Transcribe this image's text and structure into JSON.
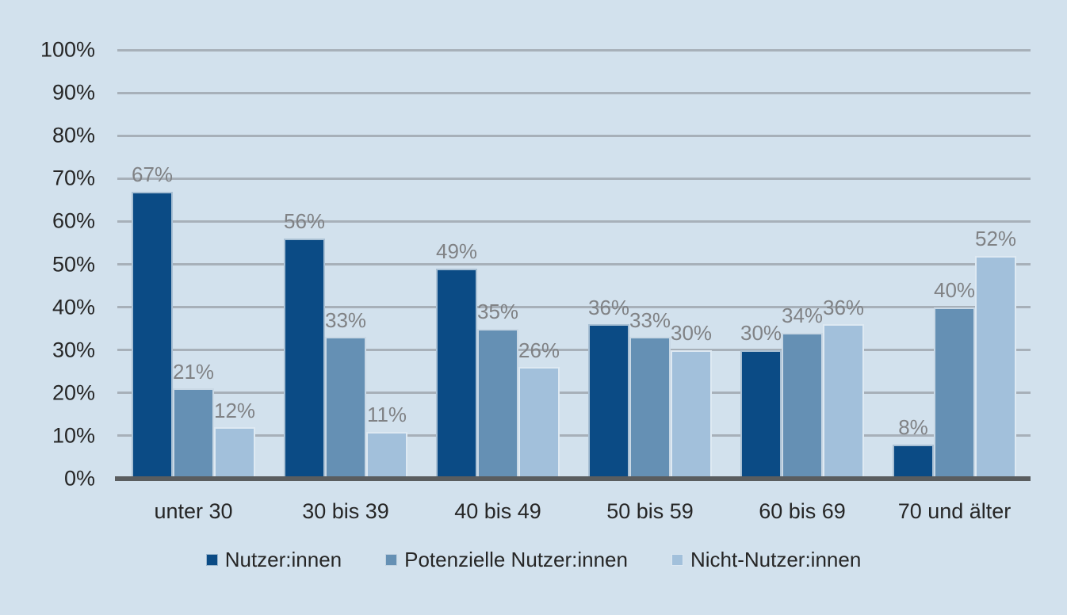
{
  "chart_data": {
    "type": "bar",
    "title": "",
    "xlabel": "",
    "ylabel": "",
    "categories": [
      "unter 30",
      "30 bis 39",
      "40 bis 49",
      "50 bis 59",
      "60 bis 69",
      "70 und älter"
    ],
    "series": [
      {
        "name": "Nutzer:innen",
        "color": "#0b4b85",
        "values": [
          67,
          56,
          49,
          36,
          30,
          8
        ]
      },
      {
        "name": "Potenzielle Nutzer:innen",
        "color": "#6590b4",
        "values": [
          21,
          33,
          35,
          33,
          34,
          40
        ]
      },
      {
        "name": "Nicht-Nutzer:innen",
        "color": "#a2c0db",
        "values": [
          12,
          11,
          26,
          30,
          36,
          52
        ]
      }
    ],
    "value_suffix": "%",
    "data_labels": true,
    "grid": true,
    "legend_position": "bottom",
    "y_axis": {
      "min": 0,
      "max": 100,
      "step": 10,
      "tick_labels": [
        "0%",
        "10%",
        "20%",
        "30%",
        "40%",
        "50%",
        "60%",
        "70%",
        "80%",
        "90%",
        "100%"
      ]
    }
  },
  "colors": {
    "background": "#d2e1ed",
    "gridline": "#a7b0b9",
    "axis_line": "#5a5d5f",
    "data_label_text": "#808285",
    "axis_text": "#262626"
  }
}
